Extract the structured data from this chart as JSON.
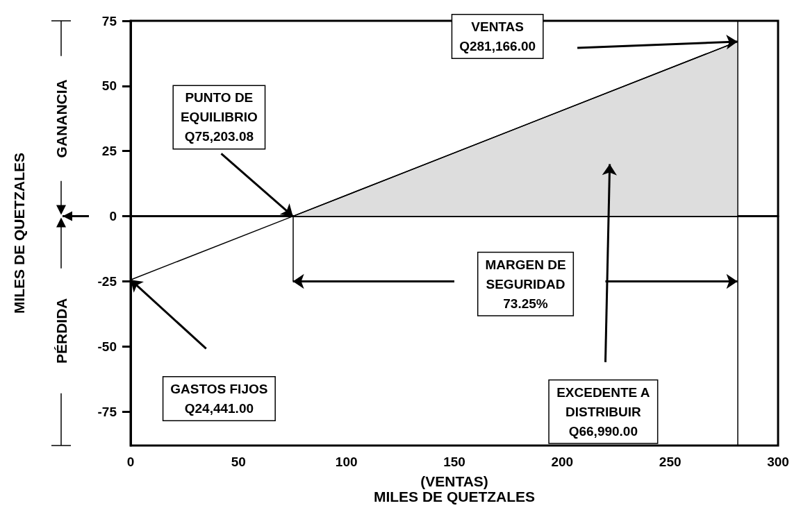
{
  "chart_data": {
    "type": "line",
    "xlabel": "(VENTAS)\nMILES DE QUETZALES",
    "ylabel": "MILES DE QUETZALES",
    "series": [
      {
        "color": "#000000",
        "x": [
          0,
          75.2,
          281.2
        ],
        "values": [
          -24.4,
          0,
          67
        ]
      },
      {
        "type": "area",
        "color": "#dddddd",
        "x": [
          75.2,
          281.2
        ],
        "values": [
          0,
          67
        ]
      }
    ],
    "xlim": [
      0,
      300
    ],
    "xticks": [
      0,
      50,
      100,
      150,
      200,
      250,
      300
    ],
    "ylim": [
      -88,
      75
    ],
    "yticks": [
      -75,
      -50,
      -25,
      0,
      25,
      50,
      75
    ],
    "ref_lines": [
      {
        "axis": "y",
        "value": 0,
        "color": "#000000"
      },
      {
        "axis": "x",
        "value": 281.2,
        "color": "#000000"
      }
    ],
    "annotations": [
      {
        "text": "PUNTO DE\nEQUILIBRIO\nQ75,203.08",
        "x": 75.2,
        "y": 0
      },
      "VENTAS\nQ281,166.00",
      "GASTOS FIJOS\nQ24,441.00",
      "EXCEDENTE A\nDISTRIBUIR\nQ66,990.00",
      "MARGEN DE\nSEGURIDAD\n73.25%",
      "GANANCIA",
      "PÉRDIDA"
    ],
    "grid": false,
    "marker": "none",
    "line_style": "solid"
  }
}
